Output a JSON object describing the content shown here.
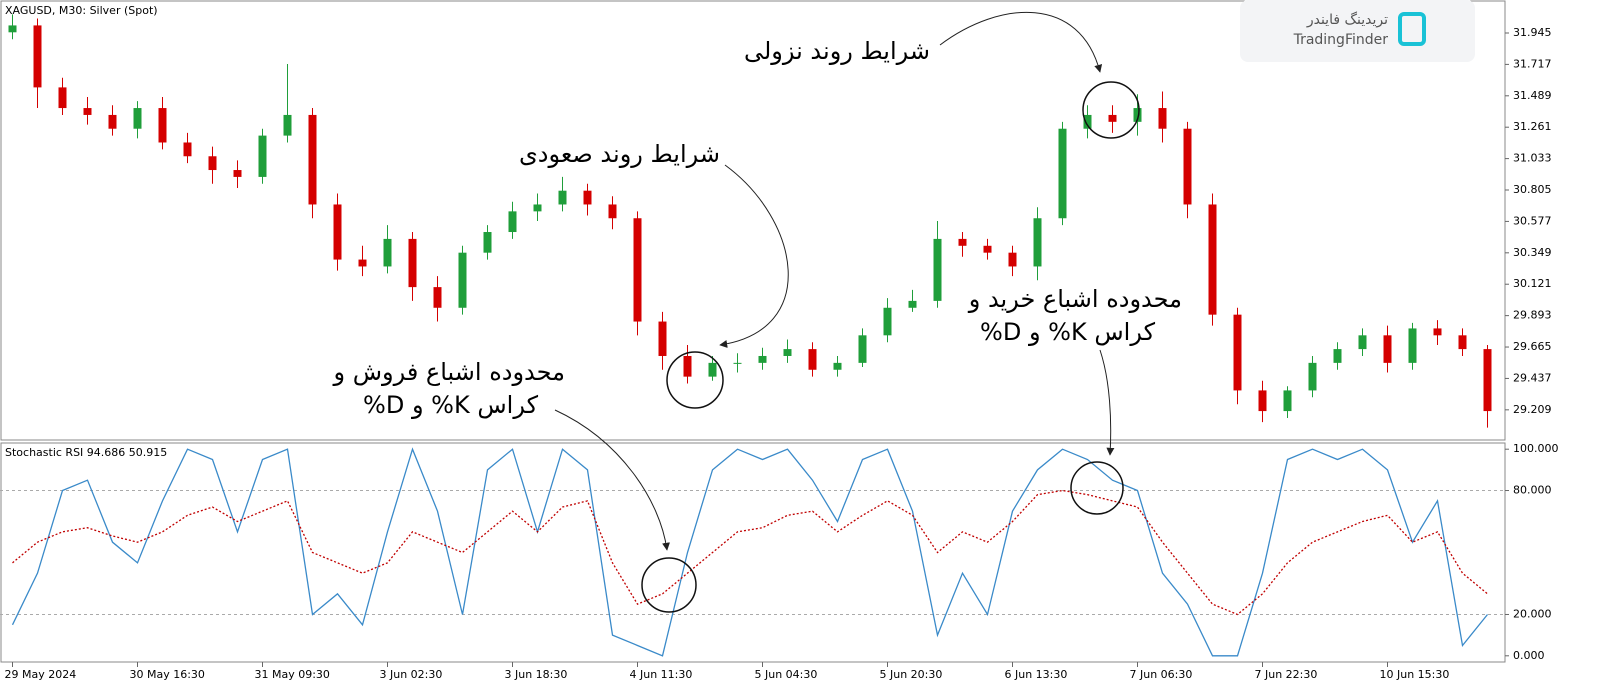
{
  "chart_data": [
    {
      "type": "candlestick",
      "title": "XAGUSD, M30:  Silver (Spot)",
      "x": [
        "29 May 2024",
        null,
        null,
        null,
        null,
        "30 May 16:30",
        null,
        null,
        null,
        null,
        "31 May 09:30",
        null,
        null,
        null,
        null,
        "3 Jun 02:30",
        null,
        null,
        null,
        null,
        "3 Jun 18:30",
        null,
        null,
        null,
        null,
        "4 Jun 11:30",
        null,
        null,
        null,
        null,
        "5 Jun 04:30",
        null,
        null,
        null,
        null,
        "5 Jun 20:30",
        null,
        null,
        null,
        null,
        "6 Jun 13:30",
        null,
        null,
        null,
        null,
        "7 Jun 06:30",
        null,
        null,
        null,
        null,
        "7 Jun 22:30",
        null,
        null,
        null,
        null,
        "10 Jun 15:30",
        null,
        null,
        null,
        null
      ],
      "open": [
        31.95,
        32.0,
        31.55,
        31.4,
        31.35,
        31.25,
        31.4,
        31.15,
        31.05,
        30.95,
        30.9,
        31.2,
        31.35,
        30.7,
        30.3,
        30.25,
        30.45,
        30.1,
        29.95,
        30.35,
        30.5,
        30.65,
        30.7,
        30.8,
        30.7,
        30.6,
        29.85,
        29.6,
        29.45,
        29.55,
        29.55,
        29.6,
        29.65,
        29.5,
        29.55,
        29.75,
        29.95,
        30.0,
        30.45,
        30.4,
        30.35,
        30.25,
        30.6,
        31.25,
        31.35,
        31.3,
        31.4,
        31.25,
        30.7,
        29.9,
        29.35,
        29.2,
        29.35,
        29.55,
        29.65,
        29.75,
        29.55,
        29.8,
        29.75,
        29.65
      ],
      "high": [
        32.08,
        32.05,
        31.62,
        31.48,
        31.42,
        31.45,
        31.48,
        31.22,
        31.12,
        31.02,
        31.25,
        31.72,
        31.4,
        30.78,
        30.4,
        30.55,
        30.5,
        30.18,
        30.4,
        30.55,
        30.72,
        30.78,
        30.9,
        30.85,
        30.76,
        30.65,
        29.92,
        29.68,
        29.6,
        29.62,
        29.66,
        29.72,
        29.7,
        29.6,
        29.8,
        30.02,
        30.08,
        30.58,
        30.5,
        30.45,
        30.4,
        30.68,
        31.3,
        31.42,
        31.42,
        31.5,
        31.52,
        31.3,
        30.78,
        29.95,
        29.42,
        29.38,
        29.6,
        29.7,
        29.8,
        29.82,
        29.84,
        29.86,
        29.8,
        29.68
      ],
      "low": [
        31.9,
        31.4,
        31.35,
        31.28,
        31.2,
        31.18,
        31.1,
        31.0,
        30.85,
        30.82,
        30.85,
        31.15,
        30.6,
        30.22,
        30.18,
        30.2,
        30.0,
        29.85,
        29.9,
        30.3,
        30.45,
        30.58,
        30.65,
        30.62,
        30.52,
        29.75,
        29.5,
        29.4,
        29.42,
        29.48,
        29.5,
        29.55,
        29.45,
        29.45,
        29.52,
        29.7,
        29.92,
        29.95,
        30.32,
        30.3,
        30.18,
        30.15,
        30.55,
        31.18,
        31.22,
        31.2,
        31.15,
        30.6,
        29.82,
        29.25,
        29.12,
        29.15,
        29.3,
        29.5,
        29.6,
        29.48,
        29.5,
        29.68,
        29.6,
        29.08
      ],
      "close": [
        32.0,
        31.55,
        31.4,
        31.35,
        31.25,
        31.4,
        31.15,
        31.05,
        30.95,
        30.9,
        31.2,
        31.35,
        30.7,
        30.3,
        30.25,
        30.45,
        30.1,
        29.95,
        30.35,
        30.5,
        30.65,
        30.7,
        30.8,
        30.7,
        30.6,
        29.85,
        29.6,
        29.45,
        29.55,
        29.55,
        29.6,
        29.65,
        29.5,
        29.55,
        29.75,
        29.95,
        30.0,
        30.45,
        30.4,
        30.35,
        30.25,
        30.6,
        31.25,
        31.35,
        31.3,
        31.4,
        31.25,
        30.7,
        29.9,
        29.35,
        29.2,
        29.35,
        29.55,
        29.65,
        29.75,
        29.55,
        29.8,
        29.75,
        29.65,
        29.2
      ],
      "up_color": "#1f9e3a",
      "down_color": "#d40000",
      "ylim": [
        28.99,
        32.17
      ],
      "yticks": [
        31.945,
        31.717,
        31.489,
        31.261,
        31.033,
        30.805,
        30.577,
        30.349,
        30.121,
        29.893,
        29.665,
        29.437,
        29.209
      ]
    },
    {
      "type": "line",
      "title": "Stochastic RSI 94.686 50.915",
      "series": [
        {
          "name": "%K",
          "color": "#3a8ac9",
          "style": "solid",
          "values": [
            15,
            40,
            80,
            85,
            55,
            45,
            75,
            100,
            95,
            60,
            95,
            100,
            20,
            30,
            15,
            60,
            100,
            70,
            20,
            90,
            100,
            60,
            100,
            90,
            10,
            5,
            0,
            50,
            90,
            100,
            95,
            100,
            85,
            65,
            95,
            100,
            70,
            10,
            40,
            20,
            70,
            90,
            100,
            95,
            85,
            80,
            40,
            25,
            0,
            0,
            40,
            95,
            100,
            95,
            100,
            90,
            55,
            75,
            5,
            20
          ]
        },
        {
          "name": "%D",
          "color": "#c00000",
          "style": "dotted",
          "values": [
            45,
            55,
            60,
            62,
            58,
            55,
            60,
            68,
            72,
            65,
            70,
            75,
            50,
            45,
            40,
            45,
            60,
            55,
            50,
            60,
            70,
            60,
            72,
            75,
            45,
            25,
            30,
            40,
            50,
            60,
            62,
            68,
            70,
            60,
            68,
            75,
            68,
            50,
            60,
            55,
            65,
            78,
            80,
            78,
            75,
            72,
            55,
            40,
            25,
            20,
            30,
            45,
            55,
            60,
            65,
            68,
            55,
            60,
            40,
            30
          ]
        }
      ],
      "ylim": [
        -3,
        103
      ],
      "yticks": [
        {
          "value": 100,
          "label": "100.000"
        },
        {
          "value": 80,
          "label": "80.000"
        },
        {
          "value": 20,
          "label": "20.000"
        },
        {
          "value": 0,
          "label": "0.000"
        }
      ],
      "dashed_levels": [
        80,
        20
      ]
    }
  ],
  "annotations": [
    "شرایط روند نزولی",
    "شرایط روند صعودی",
    "محدوده اشباع خرید و",
    "کراس K% و D%",
    "محدوده اشباع فروش و",
    "کراس K% و D%"
  ],
  "logo": {
    "fa": "تریدینگ فایندر",
    "en": "TradingFinder"
  }
}
